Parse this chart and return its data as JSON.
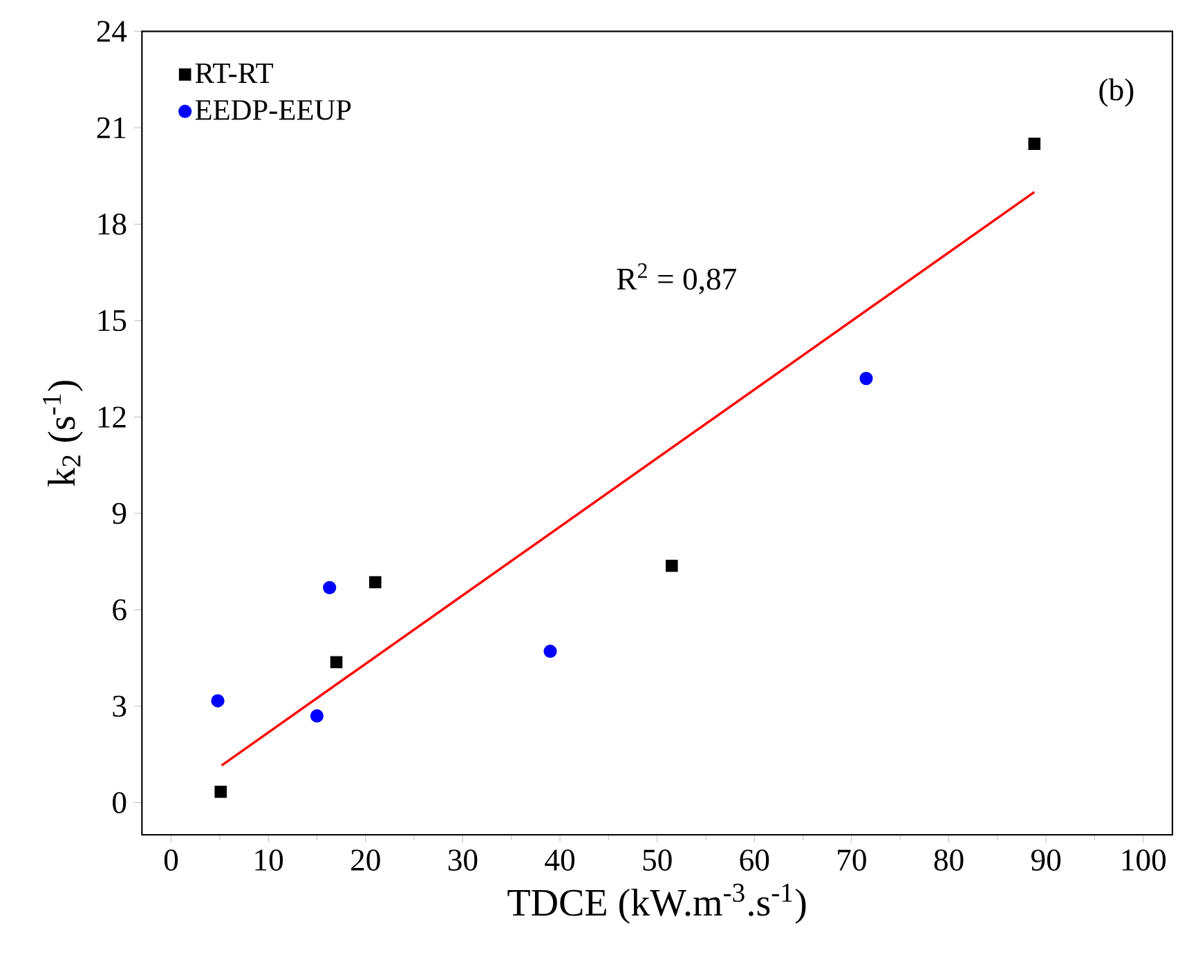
{
  "chart_data": {
    "type": "scatter",
    "xlabel": "TDCE (kW.m$^{-3}$.s$^{-1}$)",
    "ylabel": "k$_{2}$ (s$^{-1}$)",
    "xlim": [
      -3,
      103
    ],
    "ylim": [
      -1,
      24
    ],
    "xticks": [
      0,
      10,
      20,
      30,
      40,
      50,
      60,
      70,
      80,
      90,
      100
    ],
    "yticks": [
      0,
      3,
      6,
      9,
      12,
      15,
      18,
      21,
      24
    ],
    "legend": "top left",
    "grid": false,
    "annotations": [
      "(b)",
      "R$^{2}$ = 0,87"
    ],
    "series": [
      {
        "name": "RT-RT",
        "marker": "square",
        "color": "#000000",
        "x": [
          5.1,
          17.0,
          21.0,
          51.5,
          88.8
        ],
        "values": [
          0.34,
          4.37,
          6.86,
          7.37,
          20.5
        ]
      },
      {
        "name": "EEDP-EEUP",
        "marker": "circle",
        "color": "#0000ff",
        "x": [
          4.8,
          15.0,
          16.3,
          39.0,
          71.5
        ],
        "values": [
          3.17,
          2.7,
          6.69,
          4.71,
          13.2
        ]
      },
      {
        "type": "line",
        "marker": "none",
        "color": "#ff0000",
        "x": [
          5.2,
          88.8
        ],
        "values": [
          1.16,
          19.0
        ]
      }
    ]
  }
}
